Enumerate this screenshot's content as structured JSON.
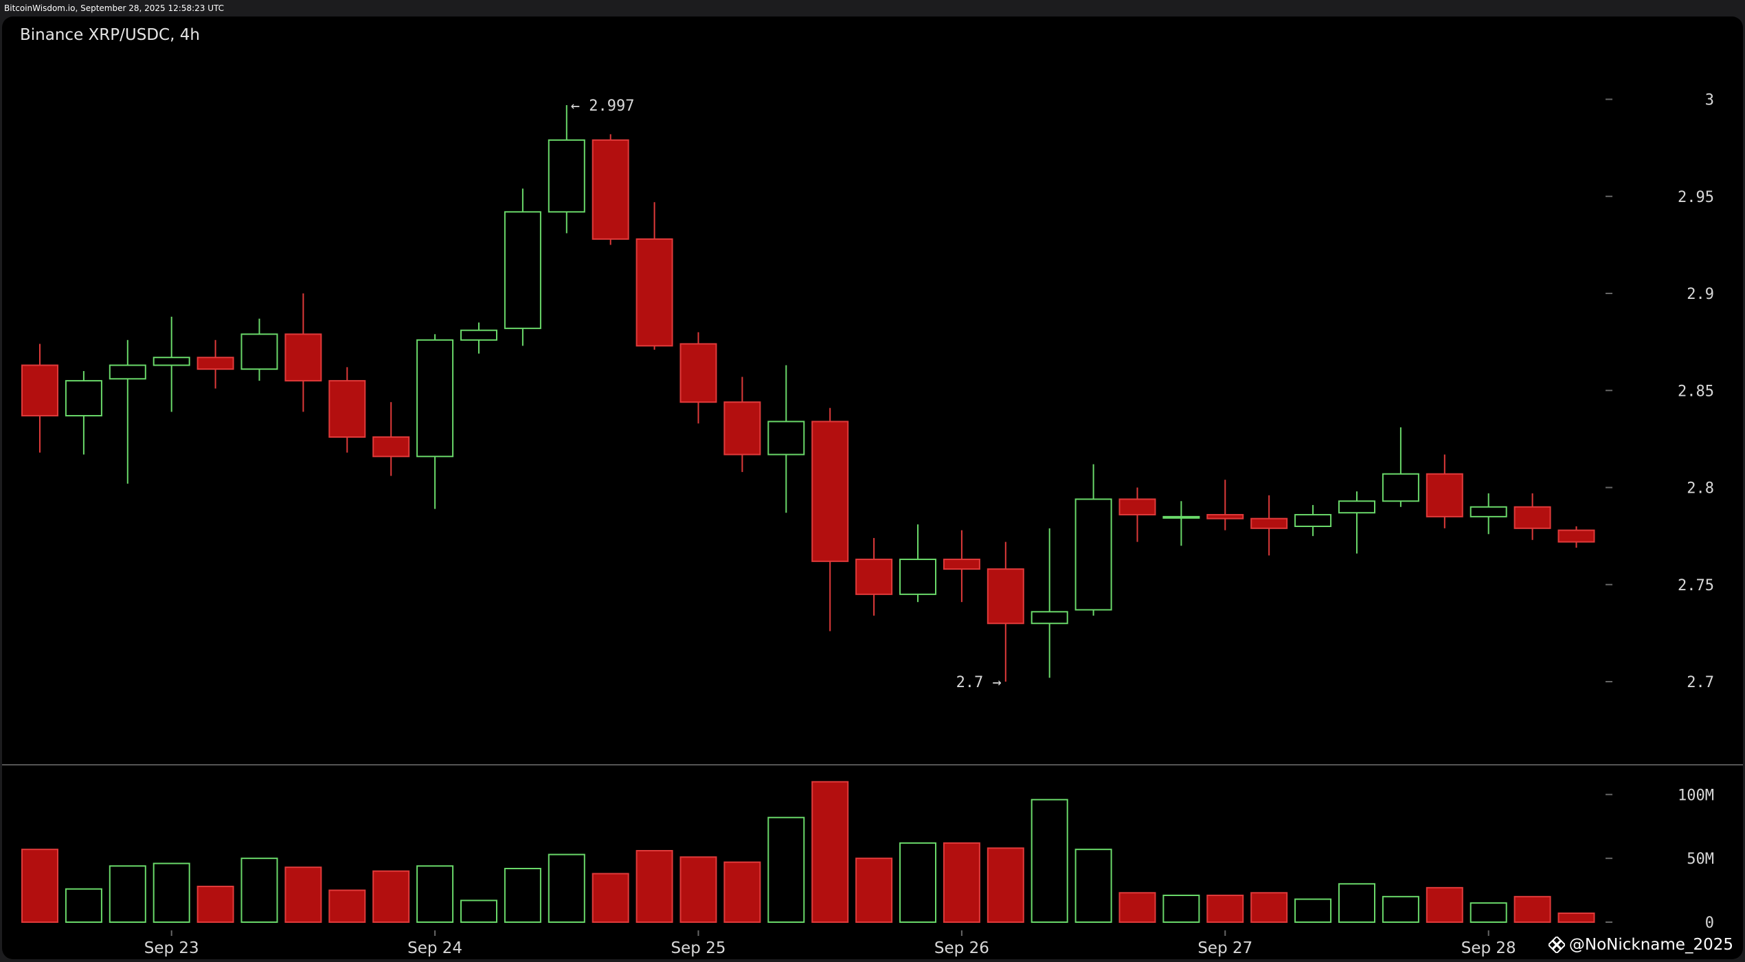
{
  "header": {
    "source_line": "BitcoinWisdom.io, September 28, 2025 12:58:23 UTC"
  },
  "chart_title": "Binance XRP/USDC, 4h",
  "watermark": "@NoNickname_2025",
  "colors": {
    "up": "#6ad96a",
    "down": "#b30f0f",
    "down_outline": "#e03a3a",
    "background": "#000000",
    "separator": "#555555",
    "text": "#d8d8d8"
  },
  "annotations": [
    {
      "label": "← 2.997",
      "candle_index": 12,
      "anchor": "high"
    },
    {
      "label": "2.7 →",
      "candle_index": 22,
      "anchor": "low"
    }
  ],
  "chart_data": [
    {
      "type": "candlestick",
      "title": "Binance XRP/USDC, 4h",
      "ylim": [
        2.66,
        3.02
      ],
      "y_ticks": [
        "3",
        "2.95",
        "2.9",
        "2.85",
        "2.8",
        "2.75",
        "2.7"
      ],
      "y_tick_values": [
        3.0,
        2.95,
        2.9,
        2.85,
        2.8,
        2.75,
        2.7
      ],
      "x_tick_labels": [
        "Sep 23",
        "Sep 24",
        "Sep 25",
        "Sep 26",
        "Sep 27",
        "Sep 28"
      ],
      "x_tick_candle_index": [
        3,
        9,
        15,
        21,
        27,
        33
      ],
      "high_label": "← 2.997",
      "low_label": "2.7 →",
      "candles": [
        {
          "o": 2.863,
          "h": 2.874,
          "l": 2.818,
          "c": 2.837
        },
        {
          "o": 2.837,
          "h": 2.86,
          "l": 2.817,
          "c": 2.855
        },
        {
          "o": 2.856,
          "h": 2.876,
          "l": 2.802,
          "c": 2.863
        },
        {
          "o": 2.863,
          "h": 2.888,
          "l": 2.839,
          "c": 2.867
        },
        {
          "o": 2.867,
          "h": 2.876,
          "l": 2.851,
          "c": 2.861
        },
        {
          "o": 2.861,
          "h": 2.887,
          "l": 2.855,
          "c": 2.879
        },
        {
          "o": 2.879,
          "h": 2.9,
          "l": 2.839,
          "c": 2.855
        },
        {
          "o": 2.855,
          "h": 2.862,
          "l": 2.818,
          "c": 2.826
        },
        {
          "o": 2.826,
          "h": 2.844,
          "l": 2.806,
          "c": 2.816
        },
        {
          "o": 2.816,
          "h": 2.879,
          "l": 2.789,
          "c": 2.876
        },
        {
          "o": 2.876,
          "h": 2.885,
          "l": 2.869,
          "c": 2.881
        },
        {
          "o": 2.882,
          "h": 2.954,
          "l": 2.873,
          "c": 2.942
        },
        {
          "o": 2.942,
          "h": 2.997,
          "l": 2.931,
          "c": 2.979
        },
        {
          "o": 2.979,
          "h": 2.982,
          "l": 2.925,
          "c": 2.928
        },
        {
          "o": 2.928,
          "h": 2.947,
          "l": 2.871,
          "c": 2.873
        },
        {
          "o": 2.874,
          "h": 2.88,
          "l": 2.833,
          "c": 2.844
        },
        {
          "o": 2.844,
          "h": 2.857,
          "l": 2.808,
          "c": 2.817
        },
        {
          "o": 2.817,
          "h": 2.863,
          "l": 2.787,
          "c": 2.834
        },
        {
          "o": 2.834,
          "h": 2.841,
          "l": 2.726,
          "c": 2.762
        },
        {
          "o": 2.763,
          "h": 2.774,
          "l": 2.734,
          "c": 2.745
        },
        {
          "o": 2.745,
          "h": 2.781,
          "l": 2.741,
          "c": 2.763
        },
        {
          "o": 2.763,
          "h": 2.778,
          "l": 2.741,
          "c": 2.758
        },
        {
          "o": 2.758,
          "h": 2.772,
          "l": 2.7,
          "c": 2.73
        },
        {
          "o": 2.73,
          "h": 2.779,
          "l": 2.702,
          "c": 2.736
        },
        {
          "o": 2.737,
          "h": 2.812,
          "l": 2.734,
          "c": 2.794
        },
        {
          "o": 2.794,
          "h": 2.8,
          "l": 2.772,
          "c": 2.786
        },
        {
          "o": 2.785,
          "h": 2.793,
          "l": 2.77,
          "c": 2.785
        },
        {
          "o": 2.786,
          "h": 2.804,
          "l": 2.778,
          "c": 2.784
        },
        {
          "o": 2.784,
          "h": 2.796,
          "l": 2.765,
          "c": 2.779
        },
        {
          "o": 2.78,
          "h": 2.791,
          "l": 2.775,
          "c": 2.786
        },
        {
          "o": 2.787,
          "h": 2.798,
          "l": 2.766,
          "c": 2.793
        },
        {
          "o": 2.793,
          "h": 2.831,
          "l": 2.79,
          "c": 2.807
        },
        {
          "o": 2.807,
          "h": 2.817,
          "l": 2.779,
          "c": 2.785
        },
        {
          "o": 2.785,
          "h": 2.797,
          "l": 2.776,
          "c": 2.79
        },
        {
          "o": 2.79,
          "h": 2.797,
          "l": 2.773,
          "c": 2.779
        },
        {
          "o": 2.778,
          "h": 2.78,
          "l": 2.769,
          "c": 2.772
        }
      ]
    },
    {
      "type": "bar",
      "title": "Volume",
      "ylim": [
        0,
        112
      ],
      "y_ticks": [
        "100M",
        "50M",
        "0"
      ],
      "y_tick_values": [
        100,
        50,
        0
      ],
      "unit": "M",
      "values": [
        57,
        26,
        44,
        46,
        28,
        50,
        43,
        25,
        40,
        44,
        17,
        42,
        53,
        38,
        56,
        51,
        47,
        82,
        110,
        50,
        62,
        62,
        58,
        96,
        57,
        23,
        21,
        21,
        23,
        18,
        30,
        20,
        27,
        15,
        20,
        7
      ]
    }
  ]
}
